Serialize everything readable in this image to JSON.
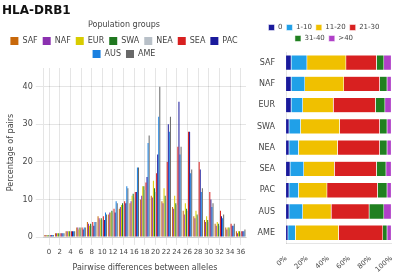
{
  "chart_data": [
    {
      "type": "bar",
      "title": "HLA-DRB1",
      "xlabel": "Pairwise differences between alleles",
      "ylabel": "Percentage of pairs",
      "legend_title": "Population groups",
      "legend": "top",
      "grid": true,
      "x": [
        0,
        2,
        4,
        6,
        8,
        10,
        12,
        14,
        16,
        18,
        20,
        22,
        24,
        26,
        28,
        30,
        32,
        34,
        36
      ],
      "xlim": [
        -1,
        37
      ],
      "xticks": [
        0,
        2,
        4,
        6,
        8,
        10,
        12,
        14,
        16,
        18,
        20,
        22,
        24,
        26,
        28,
        30,
        32,
        34,
        36
      ],
      "ylim": [
        0,
        45
      ],
      "yticks": [
        0,
        10,
        20,
        30,
        40
      ],
      "series": [
        {
          "name": "SAF",
          "color": "#c8680a",
          "values": [
            0.5,
            1.0,
            1.5,
            2.5,
            4.0,
            5.5,
            6.0,
            7.5,
            9.0,
            10.0,
            11.0,
            9.5,
            8.0,
            7.0,
            5.5,
            4.5,
            3.5,
            2.5,
            1.5
          ]
        },
        {
          "name": "NAF",
          "color": "#8b30b0",
          "values": [
            0.5,
            1.0,
            1.5,
            2.5,
            3.5,
            5.0,
            6.5,
            8.0,
            9.5,
            11.0,
            10.5,
            9.0,
            7.5,
            6.0,
            5.0,
            4.0,
            3.0,
            2.0,
            1.0
          ]
        },
        {
          "name": "EUR",
          "color": "#d8cc00",
          "values": [
            0.5,
            1.0,
            1.5,
            2.0,
            3.0,
            4.5,
            6.5,
            8.5,
            11.0,
            13.5,
            15.0,
            13.0,
            11.0,
            9.0,
            7.0,
            5.5,
            4.0,
            2.5,
            1.5
          ]
        },
        {
          "name": "SWA",
          "color": "#207820",
          "values": [
            0.5,
            1.0,
            1.5,
            2.5,
            3.5,
            5.0,
            7.0,
            9.0,
            11.5,
            13.5,
            13.0,
            11.0,
            9.0,
            7.5,
            6.0,
            4.5,
            3.5,
            2.5,
            1.5
          ]
        },
        {
          "name": "NEA",
          "color": "#b8c0c8",
          "values": [
            0.5,
            1.0,
            1.5,
            2.0,
            3.0,
            4.5,
            6.5,
            8.5,
            10.5,
            12.5,
            12.0,
            10.0,
            8.5,
            7.0,
            5.5,
            4.0,
            3.0,
            2.0,
            1.0
          ]
        },
        {
          "name": "SEA",
          "color": "#d82020",
          "values": [
            0.5,
            1.0,
            1.5,
            2.5,
            4.0,
            5.5,
            7.5,
            9.5,
            12.0,
            14.5,
            17.0,
            20.0,
            24.0,
            28.0,
            20.0,
            12.0,
            7.0,
            3.5,
            1.5
          ]
        },
        {
          "name": "PAC",
          "color": "#1a1a9c",
          "values": [
            0.5,
            1.0,
            1.5,
            2.0,
            3.0,
            4.5,
            6.5,
            9.0,
            12.0,
            16.0,
            22.0,
            30.0,
            36.0,
            28.0,
            18.0,
            10.0,
            5.5,
            3.0,
            1.5
          ]
        },
        {
          "name": "AUS",
          "color": "#1a80e0",
          "values": [
            0.5,
            1.0,
            1.5,
            2.5,
            4.0,
            6.5,
            9.5,
            13.5,
            18.5,
            25.0,
            32.0,
            28.0,
            22.0,
            17.0,
            12.0,
            8.0,
            5.0,
            3.0,
            1.5
          ]
        },
        {
          "name": "AME",
          "color": "#686868",
          "values": [
            0.5,
            1.0,
            1.5,
            2.5,
            4.0,
            6.0,
            9.0,
            13.0,
            18.5,
            27.0,
            40.0,
            32.0,
            24.0,
            18.0,
            13.0,
            9.0,
            6.0,
            3.5,
            2.0
          ]
        }
      ]
    },
    {
      "type": "bar",
      "orientation": "horizontal",
      "stacked": true,
      "legend": "top",
      "grid": false,
      "categories": [
        "AME",
        "AUS",
        "PAC",
        "SEA",
        "NEA",
        "SWA",
        "EUR",
        "NAF",
        "SAF"
      ],
      "xlim": [
        0,
        100
      ],
      "xticks": [
        {
          "value": 0,
          "label": "0%"
        },
        {
          "value": 20,
          "label": "20%"
        },
        {
          "value": 40,
          "label": "40%"
        },
        {
          "value": 60,
          "label": "60%"
        },
        {
          "value": 80,
          "label": "80%"
        },
        {
          "value": 100,
          "label": "100%"
        }
      ],
      "series": [
        {
          "name": "0",
          "color": "#1a1a9c",
          "values": [
            2,
            3,
            3,
            4,
            3,
            3,
            5,
            5,
            5
          ]
        },
        {
          "name": "1-10",
          "color": "#20a0e8",
          "values": [
            7,
            13,
            9,
            13,
            9,
            11,
            11,
            13,
            15
          ]
        },
        {
          "name": "11-20",
          "color": "#f0c000",
          "values": [
            41,
            27,
            27,
            29,
            37,
            37,
            29,
            37,
            37
          ]
        },
        {
          "name": "21-30",
          "color": "#d82020",
          "values": [
            42,
            36,
            48,
            40,
            40,
            38,
            40,
            34,
            29
          ]
        },
        {
          "name": "31-40",
          "color": "#208020",
          "values": [
            4,
            14,
            9,
            9,
            7,
            7,
            9,
            7,
            7
          ]
        },
        {
          "name": ">40",
          "color": "#b040c8",
          "values": [
            4,
            7,
            4,
            5,
            4,
            4,
            6,
            4,
            7
          ]
        }
      ]
    }
  ]
}
